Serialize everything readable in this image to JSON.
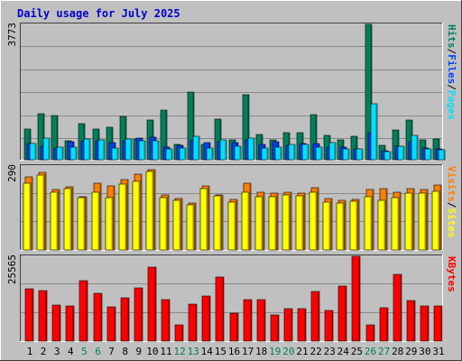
{
  "title": "Daily usage for July 2025",
  "colors": {
    "background": "#c0c0c0",
    "plot_bg": "#c0c0c0",
    "grid": "#8a8a8a",
    "hits": "#00805c",
    "files": "#0040ff",
    "pages": "#00e0ff",
    "visits": "#ff8000",
    "sites": "#ffff00",
    "kbytes": "#ff0000",
    "title": "#0000cc",
    "weekend": "#00805c",
    "weekday": "#000000"
  },
  "chart_data": [
    {
      "type": "bar",
      "panel": "hits-files-pages",
      "ymax_label": "3773",
      "ylim": [
        0,
        3773
      ],
      "axis_labels": [
        "Pages",
        "Files",
        "Hits"
      ],
      "categories": [
        "1",
        "2",
        "3",
        "4",
        "5",
        "6",
        "7",
        "8",
        "9",
        "10",
        "11",
        "12",
        "13",
        "14",
        "15",
        "16",
        "17",
        "18",
        "19",
        "20",
        "21",
        "22",
        "23",
        "24",
        "25",
        "26",
        "27",
        "28",
        "29",
        "30",
        "31"
      ],
      "series": [
        {
          "name": "Hits",
          "values": [
            860,
            1280,
            1230,
            520,
            1000,
            860,
            910,
            1200,
            580,
            1110,
            1380,
            430,
            1880,
            430,
            1140,
            550,
            1820,
            710,
            550,
            750,
            750,
            1260,
            680,
            560,
            650,
            3773,
            390,
            820,
            1100,
            560,
            580
          ]
        },
        {
          "name": "Files",
          "values": [
            460,
            380,
            330,
            500,
            540,
            530,
            480,
            540,
            610,
            620,
            350,
            410,
            550,
            480,
            510,
            470,
            560,
            420,
            500,
            400,
            460,
            460,
            350,
            340,
            290,
            750,
            260,
            380,
            510,
            330,
            290
          ]
        },
        {
          "name": "Pages",
          "values": [
            460,
            600,
            340,
            340,
            580,
            550,
            320,
            580,
            540,
            540,
            310,
            330,
            650,
            330,
            550,
            370,
            600,
            320,
            350,
            440,
            420,
            350,
            480,
            310,
            290,
            1560,
            230,
            370,
            690,
            300,
            280
          ]
        }
      ]
    },
    {
      "type": "bar",
      "panel": "sites-visits",
      "ymax_label": "290",
      "ylim": [
        0,
        290
      ],
      "axis_labels": [
        "Sites",
        "Visits"
      ],
      "categories": [
        "1",
        "2",
        "3",
        "4",
        "5",
        "6",
        "7",
        "8",
        "9",
        "10",
        "11",
        "12",
        "13",
        "14",
        "15",
        "16",
        "17",
        "18",
        "19",
        "20",
        "21",
        "22",
        "23",
        "24",
        "25",
        "26",
        "27",
        "28",
        "29",
        "30",
        "31"
      ],
      "series": [
        {
          "name": "Visits",
          "values": [
            252,
            268,
            208,
            218,
            185,
            232,
            220,
            242,
            262,
            278,
            190,
            178,
            162,
            222,
            190,
            176,
            232,
            200,
            198,
            200,
            198,
            214,
            178,
            170,
            176,
            210,
            212,
            200,
            212,
            208,
            226
          ]
        },
        {
          "name": "Sites",
          "values": [
            232,
            260,
            200,
            212,
            182,
            200,
            182,
            228,
            236,
            270,
            180,
            170,
            156,
            212,
            186,
            166,
            200,
            184,
            184,
            190,
            188,
            200,
            164,
            162,
            168,
            184,
            170,
            182,
            196,
            198,
            204
          ]
        }
      ]
    },
    {
      "type": "bar",
      "panel": "kbytes",
      "ymax_label": "25565",
      "ylim": [
        0,
        25565
      ],
      "axis_labels": [
        "KBytes"
      ],
      "categories": [
        "1",
        "2",
        "3",
        "4",
        "5",
        "6",
        "7",
        "8",
        "9",
        "10",
        "11",
        "12",
        "13",
        "14",
        "15",
        "16",
        "17",
        "18",
        "19",
        "20",
        "21",
        "22",
        "23",
        "24",
        "25",
        "26",
        "27",
        "28",
        "29",
        "30",
        "31"
      ],
      "series": [
        {
          "name": "KBytes",
          "values": [
            15900,
            15200,
            11000,
            10500,
            18100,
            14500,
            10300,
            13100,
            16000,
            22400,
            12600,
            4800,
            11200,
            13500,
            19300,
            8500,
            12400,
            12600,
            7800,
            9800,
            9800,
            14900,
            9300,
            16500,
            25565,
            5000,
            10100,
            20000,
            12200,
            10600,
            10600
          ]
        }
      ]
    }
  ]
}
